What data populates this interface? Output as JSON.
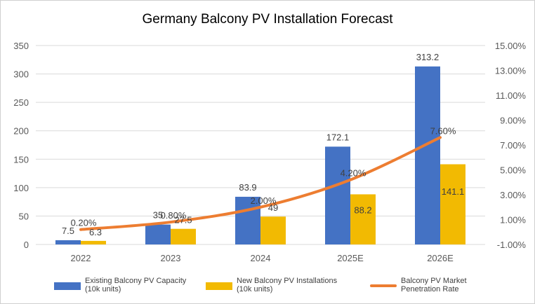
{
  "title": "Germany Balcony PV Installation Forecast",
  "colors": {
    "existing": "#4472C4",
    "new": "#F2BA02",
    "rate": "#ED7D31",
    "grid": "#d9d9d9",
    "axis_text": "#595959"
  },
  "legend": {
    "existing": "Existing Balcony PV Capacity (10k units)",
    "new": "New Balcony PV Installations (10k units)",
    "rate": "Balcony PV Market Penetration Rate"
  },
  "chart_data": {
    "type": "bar",
    "title": "Germany Balcony PV Installation Forecast",
    "categories": [
      "2022",
      "2023",
      "2024",
      "2025E",
      "2026E"
    ],
    "series": [
      {
        "name": "Existing Balcony PV Capacity (10k units)",
        "type": "bar",
        "axis": "left",
        "values": [
          7.5,
          35,
          83.9,
          172.1,
          313.2
        ],
        "labels": [
          "7.5",
          "35",
          "83.9",
          "172.1",
          "313.2"
        ]
      },
      {
        "name": "New Balcony PV Installations (10k units)",
        "type": "bar",
        "axis": "left",
        "values": [
          6.3,
          27.5,
          49,
          88.2,
          141.1
        ],
        "labels": [
          "6.3",
          "27.5",
          "49",
          "88.2",
          "141.1"
        ]
      },
      {
        "name": "Balcony PV Market Penetration Rate",
        "type": "line",
        "axis": "right",
        "values": [
          0.2,
          0.8,
          2.0,
          4.2,
          7.6
        ],
        "labels": [
          "0.20%",
          "0.80%",
          "2.00%",
          "4.20%",
          "7.60%"
        ]
      }
    ],
    "ylim": [
      0,
      350
    ],
    "yticks": [
      "0",
      "50",
      "100",
      "150",
      "200",
      "250",
      "300",
      "350"
    ],
    "y2lim": [
      -1,
      15
    ],
    "y2ticks": [
      "-1.00%",
      "1.00%",
      "3.00%",
      "5.00%",
      "7.00%",
      "9.00%",
      "11.00%",
      "13.00%",
      "15.00%"
    ],
    "grid": true,
    "legend_position": "bottom"
  }
}
